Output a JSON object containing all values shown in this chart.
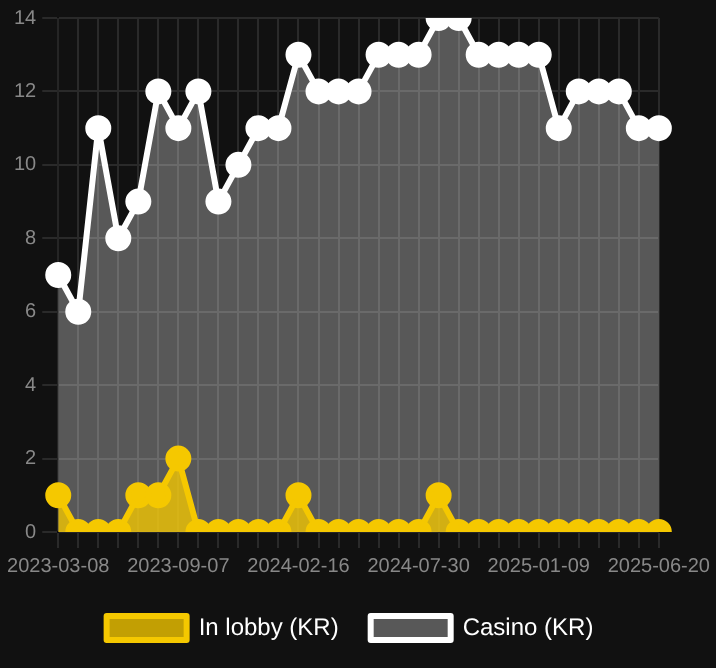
{
  "chart_data": {
    "type": "area",
    "categories": [
      "2023-03-08",
      null,
      null,
      null,
      null,
      null,
      "2023-09-07",
      null,
      null,
      null,
      null,
      null,
      "2024-02-16",
      null,
      null,
      null,
      null,
      null,
      "2024-07-30",
      null,
      null,
      null,
      null,
      null,
      "2025-01-09",
      null,
      null,
      null,
      null,
      null,
      "2025-06-20"
    ],
    "series": [
      {
        "name": "In lobby (KR)",
        "color": "#f5c800",
        "values": [
          1,
          0,
          0,
          0,
          1,
          1,
          2,
          0,
          0,
          0,
          0,
          0,
          1,
          0,
          0,
          0,
          0,
          0,
          0,
          1,
          0,
          0,
          0,
          0,
          0,
          0,
          0,
          0,
          0,
          0,
          0
        ]
      },
      {
        "name": "Casino (KR)",
        "color": "#ffffff",
        "values": [
          7,
          6,
          11,
          8,
          9,
          12,
          11,
          12,
          9,
          10,
          11,
          11,
          13,
          12,
          12,
          12,
          13,
          13,
          13,
          14,
          14,
          13,
          13,
          13,
          13,
          11,
          12,
          12,
          12,
          11,
          11
        ]
      }
    ],
    "ylim": [
      0,
      14
    ],
    "yticks": [
      0,
      2,
      4,
      6,
      8,
      10,
      12,
      14
    ],
    "grid": true,
    "legend": "bottom",
    "marker": "circle"
  }
}
